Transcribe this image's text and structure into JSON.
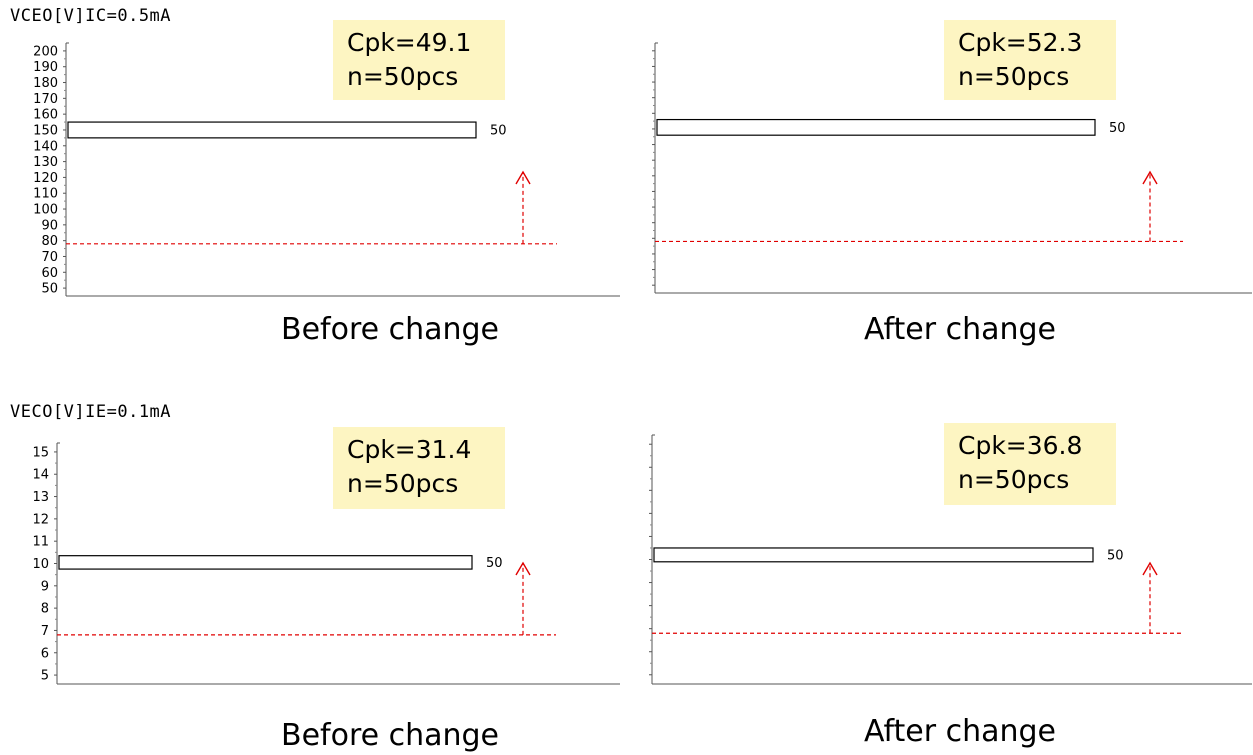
{
  "sections": [
    {
      "title": "VCEO[V]IC=0.5mA",
      "before": {
        "cpk": "Cpk=49.1",
        "n": "n=50pcs",
        "caption": "Before change"
      },
      "after": {
        "cpk": "Cpk=52.3",
        "n": "n=50pcs",
        "caption": "After change"
      }
    },
    {
      "title": "VECO[V]IE=0.1mA",
      "before": {
        "cpk": "Cpk=31.4",
        "n": "n=50pcs",
        "caption": "Before change"
      },
      "after": {
        "cpk": "Cpk=36.8",
        "n": "n=50pcs",
        "caption": "After change"
      }
    }
  ],
  "colors": {
    "limit_line": "#e00000",
    "cpk_box": "#fdf5c2",
    "bar_fill": "#ffffff",
    "bar_stroke": "#000000"
  },
  "chart_data": [
    {
      "type": "bar",
      "orientation": "horizontal",
      "panel": "VCEO before change",
      "y_ticks": [
        50,
        60,
        70,
        80,
        90,
        100,
        110,
        120,
        130,
        140,
        150,
        160,
        170,
        180,
        190,
        200
      ],
      "ylim": [
        45,
        205
      ],
      "tick_labels_visible": true,
      "bar": {
        "bin_low": 145,
        "bin_high": 155,
        "count": 50,
        "count_label": "50"
      },
      "lower_spec_limit": 78,
      "annotations": [
        "Cpk=49.1",
        "n=50pcs"
      ]
    },
    {
      "type": "bar",
      "orientation": "horizontal",
      "panel": "VCEO after change",
      "y_ticks": [
        50,
        60,
        70,
        80,
        90,
        100,
        110,
        120,
        130,
        140,
        150,
        160,
        170,
        180,
        190,
        200
      ],
      "ylim": [
        45,
        205
      ],
      "tick_labels_visible": false,
      "bar": {
        "bin_low": 146,
        "bin_high": 156,
        "count": 50,
        "count_label": "50"
      },
      "lower_spec_limit": 78,
      "annotations": [
        "Cpk=52.3",
        "n=50pcs"
      ]
    },
    {
      "type": "bar",
      "orientation": "horizontal",
      "panel": "VECO before change",
      "y_ticks": [
        5,
        6,
        7,
        8,
        9,
        10,
        11,
        12,
        13,
        14,
        15
      ],
      "ylim": [
        4.6,
        15.4
      ],
      "tick_labels_visible": true,
      "bar": {
        "bin_low": 9.75,
        "bin_high": 10.35,
        "count": 50,
        "count_label": "50"
      },
      "lower_spec_limit": 6.8,
      "annotations": [
        "Cpk=31.4",
        "n=50pcs"
      ]
    },
    {
      "type": "bar",
      "orientation": "horizontal",
      "panel": "VECO after change",
      "y_ticks": [
        5,
        6,
        7,
        8,
        9,
        10,
        11,
        12,
        13,
        14,
        15
      ],
      "ylim": [
        4.6,
        15.4
      ],
      "tick_labels_visible": false,
      "bar": {
        "bin_low": 9.9,
        "bin_high": 10.5,
        "count": 50,
        "count_label": "50"
      },
      "lower_spec_limit": 6.8,
      "annotations": [
        "Cpk=36.8",
        "n=50pcs"
      ]
    }
  ]
}
